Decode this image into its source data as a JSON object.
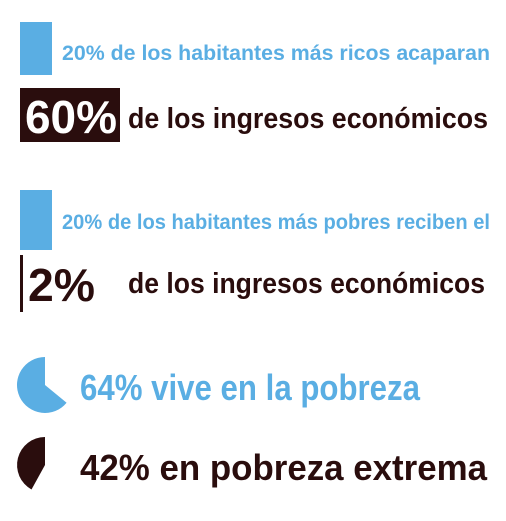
{
  "rows": [
    {
      "caption": "20% de los habitantes más ricos acaparan",
      "figure": "60%",
      "text": "de los ingresos económicos"
    },
    {
      "caption": "20% de los habitantes más pobres reciben el",
      "figure": "2%",
      "text": "de los ingresos económicos"
    }
  ],
  "stats": [
    "64% vive en la pobreza",
    "42% en pobreza extrema"
  ]
}
